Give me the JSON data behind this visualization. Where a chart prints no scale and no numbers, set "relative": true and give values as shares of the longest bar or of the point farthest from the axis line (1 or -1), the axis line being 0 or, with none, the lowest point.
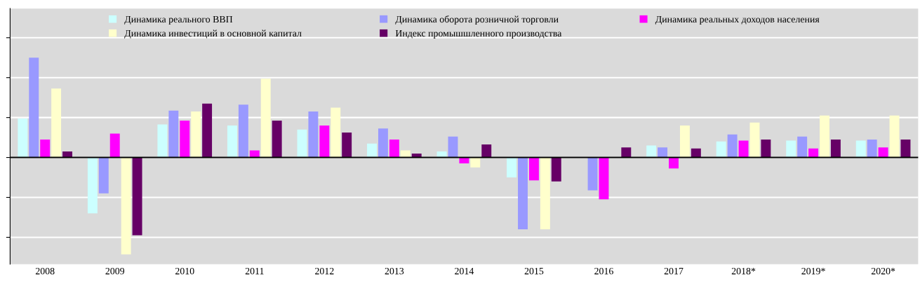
{
  "chart_data": {
    "type": "bar",
    "relative": true,
    "grid": "y",
    "legend": "top",
    "categories": [
      "2008",
      "2009",
      "2010",
      "2011",
      "2012",
      "2013",
      "2014",
      "2015",
      "2016",
      "2017",
      "2018*",
      "2019*",
      "2020*"
    ],
    "series": [
      {
        "name": "Динамика реального ВВП",
        "color": "#ccffff",
        "values": [
          0.39,
          -0.56,
          0.33,
          0.32,
          0.28,
          0.14,
          0.06,
          -0.2,
          null,
          0.12,
          0.16,
          0.17,
          0.17
        ]
      },
      {
        "name": "Динамика оборота розничной торговли",
        "color": "#9999ff",
        "values": [
          1,
          -0.36,
          0.47,
          0.53,
          0.46,
          0.29,
          0.21,
          -0.72,
          -0.33,
          0.1,
          0.23,
          0.21,
          0.18
        ]
      },
      {
        "name": "Динамика реальных доходов населения",
        "color": "#ff00ff",
        "values": [
          0.18,
          0.24,
          0.37,
          0.07,
          0.32,
          0.18,
          -0.06,
          -0.23,
          -0.42,
          -0.11,
          0.17,
          0.09,
          0.1
        ]
      },
      {
        "name": "Динамика инвестиций в основной капитал",
        "color": "#ffffcc",
        "values": [
          0.69,
          -0.97,
          0.46,
          0.79,
          0.5,
          0.07,
          -0.1,
          -0.72,
          null,
          0.32,
          0.35,
          0.42,
          0.42
        ]
      },
      {
        "name": "Индекс промышшленного производства",
        "color": "#660066",
        "values": [
          0.06,
          -0.78,
          0.54,
          0.37,
          0.25,
          0.04,
          0.13,
          -0.24,
          0.1,
          0.09,
          0.18,
          0.18,
          0.18
        ]
      }
    ]
  }
}
